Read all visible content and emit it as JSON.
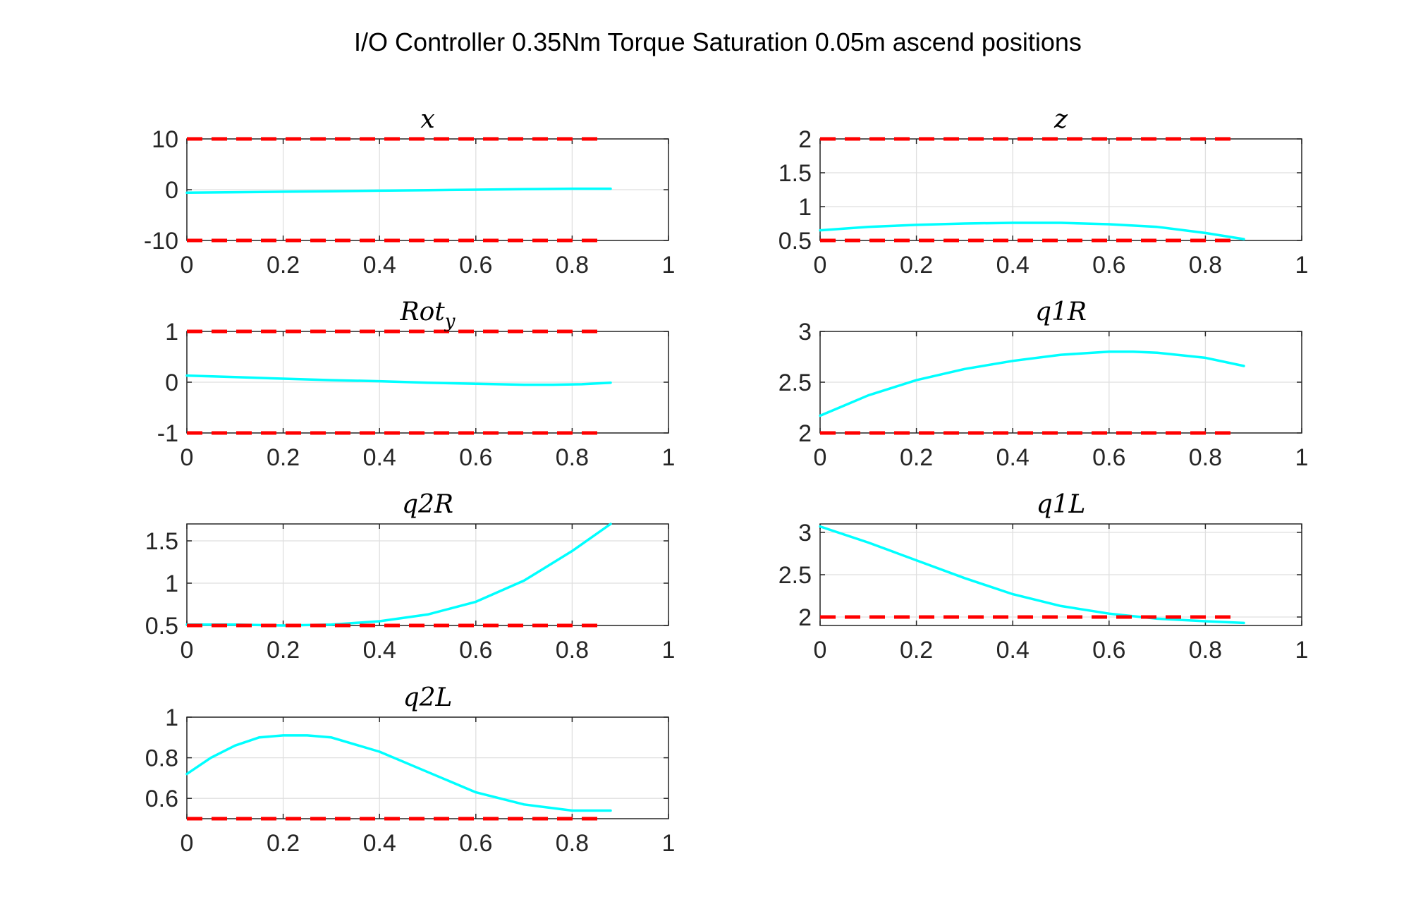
{
  "figure_title": "I/O Controller 0.35Nm Torque Saturation 0.05m ascend positions",
  "colors": {
    "series": "#00FFFF",
    "bounds": "#FF0000",
    "axes": "#262626",
    "grid": "#DFDFDF"
  },
  "chart_data": [
    {
      "type": "line",
      "title": "x",
      "title_sub": "",
      "xlim": [
        0,
        1
      ],
      "ylim": [
        -10,
        10
      ],
      "xticks": [
        0,
        0.2,
        0.4,
        0.6,
        0.8,
        1
      ],
      "xtick_labels": [
        "0",
        "0.2",
        "0.4",
        "0.6",
        "0.8",
        "1"
      ],
      "yticks": [
        -10,
        0,
        10
      ],
      "ytick_labels": [
        "-10",
        "0",
        "10"
      ],
      "grid": true,
      "bounds": [
        {
          "y": 10,
          "x": [
            0,
            0.86
          ]
        },
        {
          "y": -10,
          "x": [
            0,
            0.86
          ]
        }
      ],
      "series": [
        {
          "x": [
            0,
            0.1,
            0.2,
            0.3,
            0.4,
            0.5,
            0.6,
            0.7,
            0.8,
            0.88
          ],
          "y": [
            -0.6,
            -0.5,
            -0.4,
            -0.3,
            -0.2,
            -0.1,
            0.0,
            0.1,
            0.2,
            0.2
          ]
        }
      ]
    },
    {
      "type": "line",
      "title": "z",
      "title_sub": "",
      "xlim": [
        0,
        1
      ],
      "ylim": [
        0.5,
        2
      ],
      "xticks": [
        0,
        0.2,
        0.4,
        0.6,
        0.8,
        1
      ],
      "xtick_labels": [
        "0",
        "0.2",
        "0.4",
        "0.6",
        "0.8",
        "1"
      ],
      "yticks": [
        0.5,
        1,
        1.5,
        2
      ],
      "ytick_labels": [
        "0.5",
        "1",
        "1.5",
        "2"
      ],
      "grid": true,
      "bounds": [
        {
          "y": 2,
          "x": [
            0,
            0.86
          ]
        },
        {
          "y": 0.5,
          "x": [
            0,
            0.86
          ]
        }
      ],
      "series": [
        {
          "x": [
            0,
            0.1,
            0.2,
            0.3,
            0.4,
            0.5,
            0.6,
            0.7,
            0.8,
            0.88
          ],
          "y": [
            0.65,
            0.7,
            0.73,
            0.75,
            0.76,
            0.76,
            0.74,
            0.7,
            0.61,
            0.52
          ]
        }
      ]
    },
    {
      "type": "line",
      "title": "Rot",
      "title_sub": "y",
      "xlim": [
        0,
        1
      ],
      "ylim": [
        -1,
        1
      ],
      "xticks": [
        0,
        0.2,
        0.4,
        0.6,
        0.8,
        1
      ],
      "xtick_labels": [
        "0",
        "0.2",
        "0.4",
        "0.6",
        "0.8",
        "1"
      ],
      "yticks": [
        -1,
        0,
        1
      ],
      "ytick_labels": [
        "-1",
        "0",
        "1"
      ],
      "grid": true,
      "bounds": [
        {
          "y": 1,
          "x": [
            0,
            0.86
          ]
        },
        {
          "y": -1,
          "x": [
            0,
            0.86
          ]
        }
      ],
      "series": [
        {
          "x": [
            0,
            0.1,
            0.2,
            0.3,
            0.4,
            0.5,
            0.6,
            0.7,
            0.76,
            0.82,
            0.88
          ],
          "y": [
            0.13,
            0.1,
            0.07,
            0.04,
            0.02,
            -0.01,
            -0.03,
            -0.05,
            -0.05,
            -0.04,
            -0.01
          ]
        }
      ]
    },
    {
      "type": "line",
      "title": "q1R",
      "title_sub": "",
      "xlim": [
        0,
        1
      ],
      "ylim": [
        2,
        3
      ],
      "xticks": [
        0,
        0.2,
        0.4,
        0.6,
        0.8,
        1
      ],
      "xtick_labels": [
        "0",
        "0.2",
        "0.4",
        "0.6",
        "0.8",
        "1"
      ],
      "yticks": [
        2,
        2.5,
        3
      ],
      "ytick_labels": [
        "2",
        "2.5",
        "3"
      ],
      "grid": true,
      "bounds": [
        {
          "y": 2,
          "x": [
            0,
            0.86
          ]
        }
      ],
      "series": [
        {
          "x": [
            0,
            0.05,
            0.1,
            0.2,
            0.3,
            0.4,
            0.5,
            0.6,
            0.65,
            0.7,
            0.8,
            0.88
          ],
          "y": [
            2.17,
            2.27,
            2.37,
            2.52,
            2.63,
            2.71,
            2.77,
            2.8,
            2.8,
            2.79,
            2.74,
            2.66
          ]
        }
      ]
    },
    {
      "type": "line",
      "title": "q2R",
      "title_sub": "",
      "xlim": [
        0,
        1
      ],
      "ylim": [
        0.5,
        1.7
      ],
      "xticks": [
        0,
        0.2,
        0.4,
        0.6,
        0.8,
        1
      ],
      "xtick_labels": [
        "0",
        "0.2",
        "0.4",
        "0.6",
        "0.8",
        "1"
      ],
      "yticks": [
        0.5,
        1,
        1.5
      ],
      "ytick_labels": [
        "0.5",
        "1",
        "1.5"
      ],
      "grid": true,
      "bounds": [
        {
          "y": 0.5,
          "x": [
            0,
            0.86
          ]
        }
      ],
      "series": [
        {
          "x": [
            0,
            0.1,
            0.2,
            0.3,
            0.4,
            0.5,
            0.6,
            0.7,
            0.8,
            0.88
          ],
          "y": [
            0.51,
            0.51,
            0.5,
            0.51,
            0.55,
            0.63,
            0.78,
            1.03,
            1.38,
            1.7
          ]
        }
      ]
    },
    {
      "type": "line",
      "title": "q1L",
      "title_sub": "",
      "xlim": [
        0,
        1
      ],
      "ylim": [
        1.9,
        3.1
      ],
      "xticks": [
        0,
        0.2,
        0.4,
        0.6,
        0.8,
        1
      ],
      "xtick_labels": [
        "0",
        "0.2",
        "0.4",
        "0.6",
        "0.8",
        "1"
      ],
      "yticks": [
        2,
        2.5,
        3
      ],
      "ytick_labels": [
        "2",
        "2.5",
        "3"
      ],
      "grid": true,
      "bounds": [
        {
          "y": 2,
          "x": [
            0,
            0.86
          ]
        }
      ],
      "series": [
        {
          "x": [
            0,
            0.1,
            0.2,
            0.3,
            0.4,
            0.5,
            0.6,
            0.7,
            0.8,
            0.88
          ],
          "y": [
            3.07,
            2.88,
            2.67,
            2.46,
            2.27,
            2.13,
            2.04,
            1.98,
            1.95,
            1.93
          ]
        }
      ]
    },
    {
      "type": "line",
      "title": "q2L",
      "title_sub": "",
      "xlim": [
        0,
        1
      ],
      "ylim": [
        0.5,
        1
      ],
      "xticks": [
        0,
        0.2,
        0.4,
        0.6,
        0.8,
        1
      ],
      "xtick_labels": [
        "0",
        "0.2",
        "0.4",
        "0.6",
        "0.8",
        "1"
      ],
      "yticks": [
        0.6,
        0.8,
        1
      ],
      "ytick_labels": [
        "0.6",
        "0.8",
        "1"
      ],
      "grid": true,
      "bounds": [
        {
          "y": 0.5,
          "x": [
            0,
            0.86
          ]
        }
      ],
      "series": [
        {
          "x": [
            0,
            0.05,
            0.1,
            0.15,
            0.2,
            0.25,
            0.3,
            0.4,
            0.5,
            0.6,
            0.7,
            0.8,
            0.88
          ],
          "y": [
            0.72,
            0.8,
            0.86,
            0.9,
            0.91,
            0.91,
            0.9,
            0.83,
            0.73,
            0.63,
            0.57,
            0.54,
            0.54
          ]
        }
      ]
    }
  ]
}
